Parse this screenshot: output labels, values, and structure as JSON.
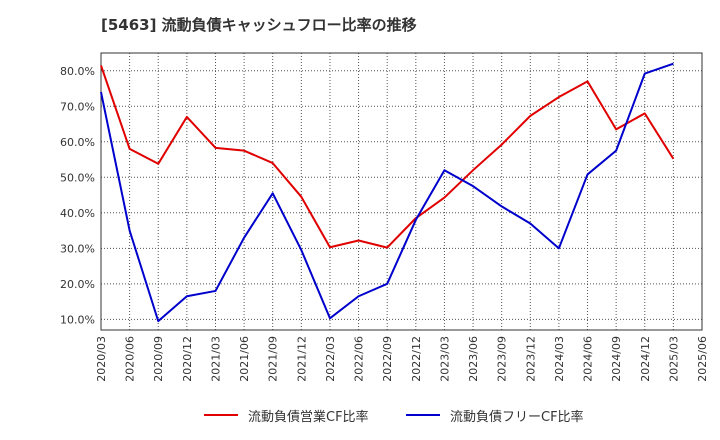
{
  "chart_data": {
    "type": "line",
    "title": "[5463]  流動負債キャッシュフロー比率の推移",
    "xlabel": "",
    "ylabel": "",
    "x": [
      "2020/03",
      "2020/06",
      "2020/09",
      "2020/12",
      "2021/03",
      "2021/06",
      "2021/09",
      "2021/12",
      "2022/03",
      "2022/06",
      "2022/09",
      "2022/12",
      "2023/03",
      "2023/06",
      "2023/09",
      "2023/12",
      "2024/03",
      "2024/06",
      "2024/09",
      "2024/12",
      "2025/03",
      "2025/06"
    ],
    "y_ticks": [
      10,
      20,
      30,
      40,
      50,
      60,
      70,
      80
    ],
    "y_tick_labels": [
      "10.0%",
      "20.0%",
      "30.0%",
      "40.0%",
      "50.0%",
      "60.0%",
      "70.0%",
      "80.0%"
    ],
    "ylim": [
      7,
      85
    ],
    "grid": true,
    "legend_position": "bottom",
    "series": [
      {
        "name": "流動負債営業CF比率",
        "color": "#e00000",
        "values": [
          81.5,
          58,
          53.8,
          67,
          58.3,
          57.5,
          54,
          44.5,
          30.3,
          32.2,
          30.2,
          38.5,
          44.3,
          52,
          59.2,
          67.3,
          72.6,
          77,
          63.5,
          68,
          55.2,
          null
        ]
      },
      {
        "name": "流動負債フリーCF比率",
        "color": "#0000cc",
        "values": [
          74,
          35,
          9.5,
          16.5,
          18,
          33,
          45.5,
          29.5,
          10.3,
          16.5,
          20,
          38,
          52,
          47.5,
          41.8,
          37,
          30,
          50.8,
          57.5,
          79.2,
          82,
          null
        ]
      }
    ]
  }
}
